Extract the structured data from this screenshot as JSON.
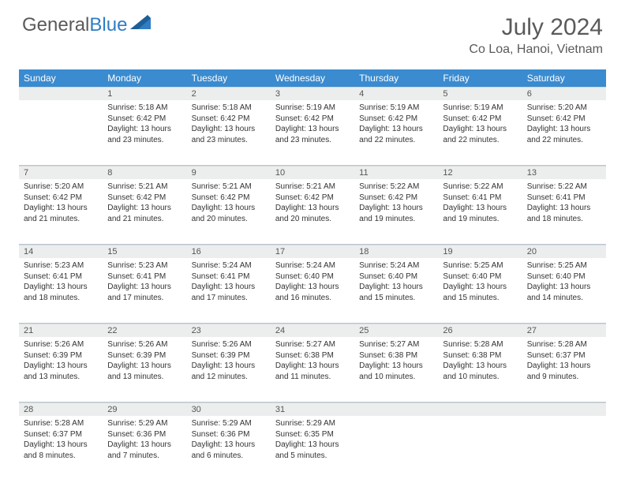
{
  "logo": {
    "text1": "General",
    "text2": "Blue"
  },
  "title": "July 2024",
  "location": "Co Loa, Hanoi, Vietnam",
  "colors": {
    "header_bg": "#3a8bd0",
    "daynum_bg": "#eceded",
    "text": "#333333",
    "title": "#5a5a5a",
    "logo_blue": "#2f7dc4",
    "separator": "#b9c7d3"
  },
  "day_names": [
    "Sunday",
    "Monday",
    "Tuesday",
    "Wednesday",
    "Thursday",
    "Friday",
    "Saturday"
  ],
  "weeks": [
    [
      {
        "day": "",
        "lines": []
      },
      {
        "day": "1",
        "lines": [
          "Sunrise: 5:18 AM",
          "Sunset: 6:42 PM",
          "Daylight: 13 hours",
          "and 23 minutes."
        ]
      },
      {
        "day": "2",
        "lines": [
          "Sunrise: 5:18 AM",
          "Sunset: 6:42 PM",
          "Daylight: 13 hours",
          "and 23 minutes."
        ]
      },
      {
        "day": "3",
        "lines": [
          "Sunrise: 5:19 AM",
          "Sunset: 6:42 PM",
          "Daylight: 13 hours",
          "and 23 minutes."
        ]
      },
      {
        "day": "4",
        "lines": [
          "Sunrise: 5:19 AM",
          "Sunset: 6:42 PM",
          "Daylight: 13 hours",
          "and 22 minutes."
        ]
      },
      {
        "day": "5",
        "lines": [
          "Sunrise: 5:19 AM",
          "Sunset: 6:42 PM",
          "Daylight: 13 hours",
          "and 22 minutes."
        ]
      },
      {
        "day": "6",
        "lines": [
          "Sunrise: 5:20 AM",
          "Sunset: 6:42 PM",
          "Daylight: 13 hours",
          "and 22 minutes."
        ]
      }
    ],
    [
      {
        "day": "7",
        "lines": [
          "Sunrise: 5:20 AM",
          "Sunset: 6:42 PM",
          "Daylight: 13 hours",
          "and 21 minutes."
        ]
      },
      {
        "day": "8",
        "lines": [
          "Sunrise: 5:21 AM",
          "Sunset: 6:42 PM",
          "Daylight: 13 hours",
          "and 21 minutes."
        ]
      },
      {
        "day": "9",
        "lines": [
          "Sunrise: 5:21 AM",
          "Sunset: 6:42 PM",
          "Daylight: 13 hours",
          "and 20 minutes."
        ]
      },
      {
        "day": "10",
        "lines": [
          "Sunrise: 5:21 AM",
          "Sunset: 6:42 PM",
          "Daylight: 13 hours",
          "and 20 minutes."
        ]
      },
      {
        "day": "11",
        "lines": [
          "Sunrise: 5:22 AM",
          "Sunset: 6:42 PM",
          "Daylight: 13 hours",
          "and 19 minutes."
        ]
      },
      {
        "day": "12",
        "lines": [
          "Sunrise: 5:22 AM",
          "Sunset: 6:41 PM",
          "Daylight: 13 hours",
          "and 19 minutes."
        ]
      },
      {
        "day": "13",
        "lines": [
          "Sunrise: 5:22 AM",
          "Sunset: 6:41 PM",
          "Daylight: 13 hours",
          "and 18 minutes."
        ]
      }
    ],
    [
      {
        "day": "14",
        "lines": [
          "Sunrise: 5:23 AM",
          "Sunset: 6:41 PM",
          "Daylight: 13 hours",
          "and 18 minutes."
        ]
      },
      {
        "day": "15",
        "lines": [
          "Sunrise: 5:23 AM",
          "Sunset: 6:41 PM",
          "Daylight: 13 hours",
          "and 17 minutes."
        ]
      },
      {
        "day": "16",
        "lines": [
          "Sunrise: 5:24 AM",
          "Sunset: 6:41 PM",
          "Daylight: 13 hours",
          "and 17 minutes."
        ]
      },
      {
        "day": "17",
        "lines": [
          "Sunrise: 5:24 AM",
          "Sunset: 6:40 PM",
          "Daylight: 13 hours",
          "and 16 minutes."
        ]
      },
      {
        "day": "18",
        "lines": [
          "Sunrise: 5:24 AM",
          "Sunset: 6:40 PM",
          "Daylight: 13 hours",
          "and 15 minutes."
        ]
      },
      {
        "day": "19",
        "lines": [
          "Sunrise: 5:25 AM",
          "Sunset: 6:40 PM",
          "Daylight: 13 hours",
          "and 15 minutes."
        ]
      },
      {
        "day": "20",
        "lines": [
          "Sunrise: 5:25 AM",
          "Sunset: 6:40 PM",
          "Daylight: 13 hours",
          "and 14 minutes."
        ]
      }
    ],
    [
      {
        "day": "21",
        "lines": [
          "Sunrise: 5:26 AM",
          "Sunset: 6:39 PM",
          "Daylight: 13 hours",
          "and 13 minutes."
        ]
      },
      {
        "day": "22",
        "lines": [
          "Sunrise: 5:26 AM",
          "Sunset: 6:39 PM",
          "Daylight: 13 hours",
          "and 13 minutes."
        ]
      },
      {
        "day": "23",
        "lines": [
          "Sunrise: 5:26 AM",
          "Sunset: 6:39 PM",
          "Daylight: 13 hours",
          "and 12 minutes."
        ]
      },
      {
        "day": "24",
        "lines": [
          "Sunrise: 5:27 AM",
          "Sunset: 6:38 PM",
          "Daylight: 13 hours",
          "and 11 minutes."
        ]
      },
      {
        "day": "25",
        "lines": [
          "Sunrise: 5:27 AM",
          "Sunset: 6:38 PM",
          "Daylight: 13 hours",
          "and 10 minutes."
        ]
      },
      {
        "day": "26",
        "lines": [
          "Sunrise: 5:28 AM",
          "Sunset: 6:38 PM",
          "Daylight: 13 hours",
          "and 10 minutes."
        ]
      },
      {
        "day": "27",
        "lines": [
          "Sunrise: 5:28 AM",
          "Sunset: 6:37 PM",
          "Daylight: 13 hours",
          "and 9 minutes."
        ]
      }
    ],
    [
      {
        "day": "28",
        "lines": [
          "Sunrise: 5:28 AM",
          "Sunset: 6:37 PM",
          "Daylight: 13 hours",
          "and 8 minutes."
        ]
      },
      {
        "day": "29",
        "lines": [
          "Sunrise: 5:29 AM",
          "Sunset: 6:36 PM",
          "Daylight: 13 hours",
          "and 7 minutes."
        ]
      },
      {
        "day": "30",
        "lines": [
          "Sunrise: 5:29 AM",
          "Sunset: 6:36 PM",
          "Daylight: 13 hours",
          "and 6 minutes."
        ]
      },
      {
        "day": "31",
        "lines": [
          "Sunrise: 5:29 AM",
          "Sunset: 6:35 PM",
          "Daylight: 13 hours",
          "and 5 minutes."
        ]
      },
      {
        "day": "",
        "lines": []
      },
      {
        "day": "",
        "lines": []
      },
      {
        "day": "",
        "lines": []
      }
    ]
  ]
}
